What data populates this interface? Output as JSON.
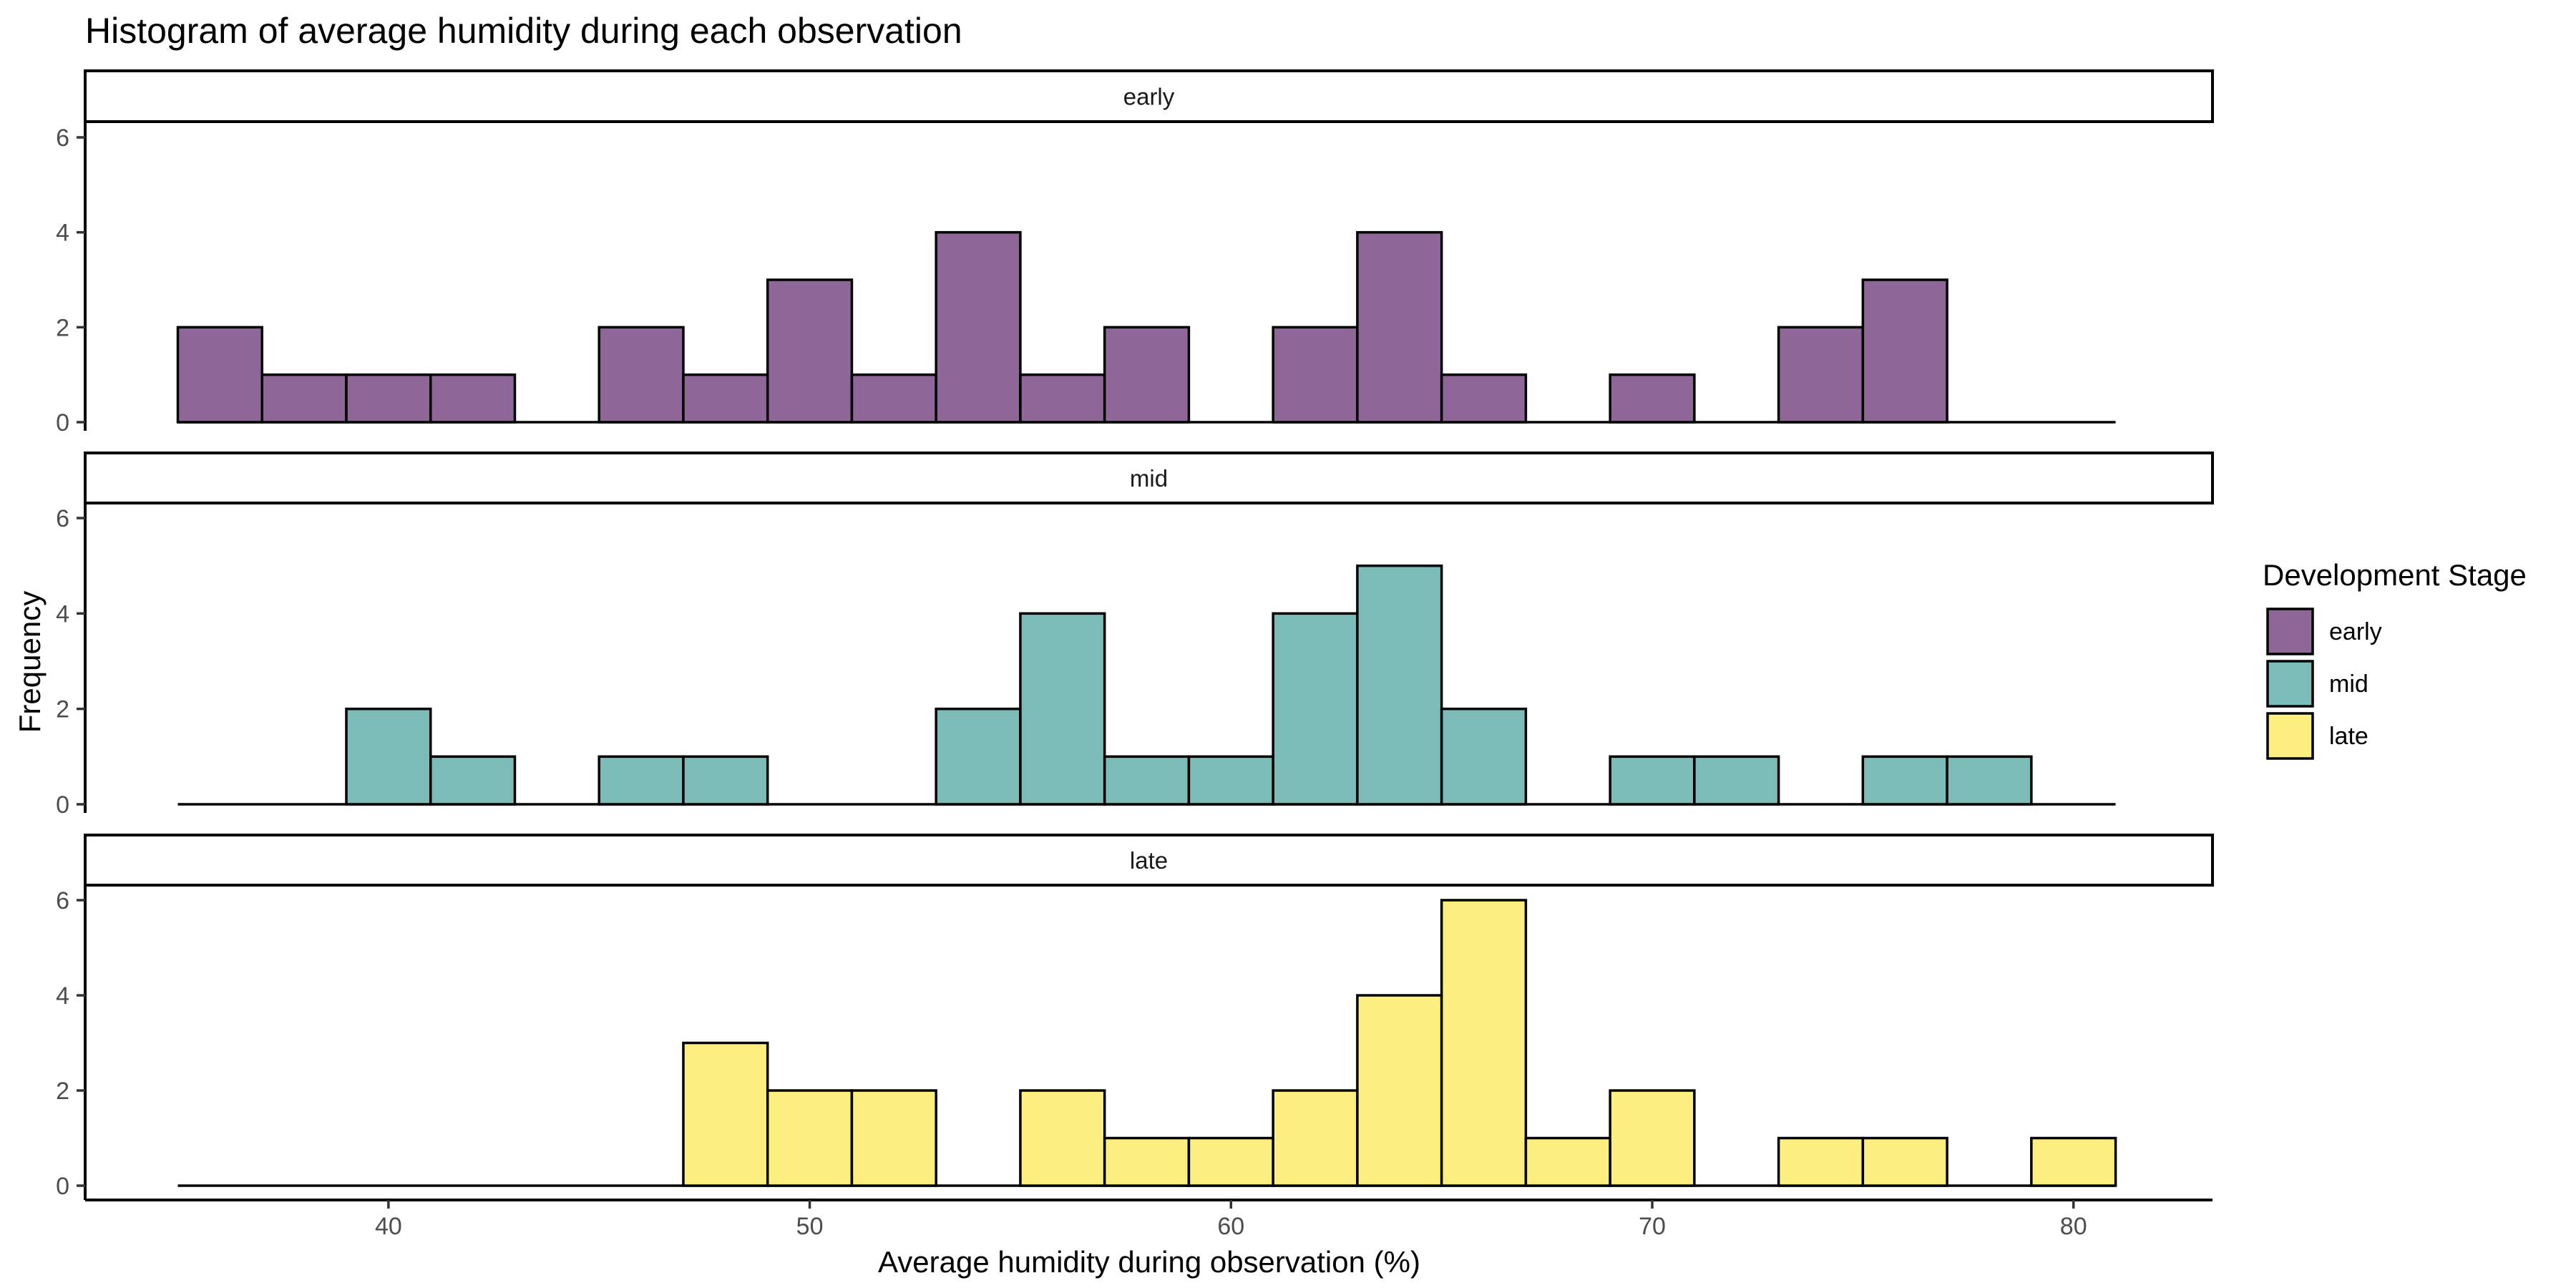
{
  "chart_data": {
    "type": "bar",
    "chart_kind": "faceted histogram",
    "title": "Histogram of average humidity during each observation",
    "xlabel": "Average humidity during observation (%)",
    "ylabel": "Frequency",
    "xlim": [
      32.8,
      83.3
    ],
    "ylim": [
      0,
      6.3
    ],
    "x_ticks": [
      40,
      50,
      60,
      70,
      80
    ],
    "y_ticks": [
      0,
      2,
      4,
      6
    ],
    "bin_width": 2,
    "bin_start": 35,
    "bin_centers": [
      36,
      38,
      40,
      42,
      44,
      46,
      48,
      50,
      52,
      54,
      56,
      58,
      60,
      62,
      64,
      66,
      68,
      70,
      72,
      74,
      76,
      78,
      80
    ],
    "grid": false,
    "legend": {
      "title": "Development Stage",
      "placement": "right"
    },
    "series": [
      {
        "name": "early",
        "color": "#8e6698",
        "values": [
          2,
          1,
          1,
          1,
          0,
          2,
          1,
          3,
          1,
          4,
          1,
          2,
          0,
          2,
          4,
          1,
          0,
          1,
          0,
          2,
          3,
          0,
          0
        ]
      },
      {
        "name": "mid",
        "color": "#7bbcb9",
        "values": [
          0,
          0,
          2,
          1,
          0,
          1,
          1,
          0,
          0,
          2,
          4,
          1,
          1,
          4,
          5,
          2,
          0,
          1,
          1,
          0,
          1,
          1,
          0
        ]
      },
      {
        "name": "late",
        "color": "#fdef7f",
        "values": [
          0,
          0,
          0,
          0,
          0,
          0,
          3,
          2,
          2,
          0,
          2,
          1,
          1,
          2,
          4,
          6,
          1,
          2,
          0,
          1,
          1,
          0,
          1
        ]
      }
    ]
  }
}
